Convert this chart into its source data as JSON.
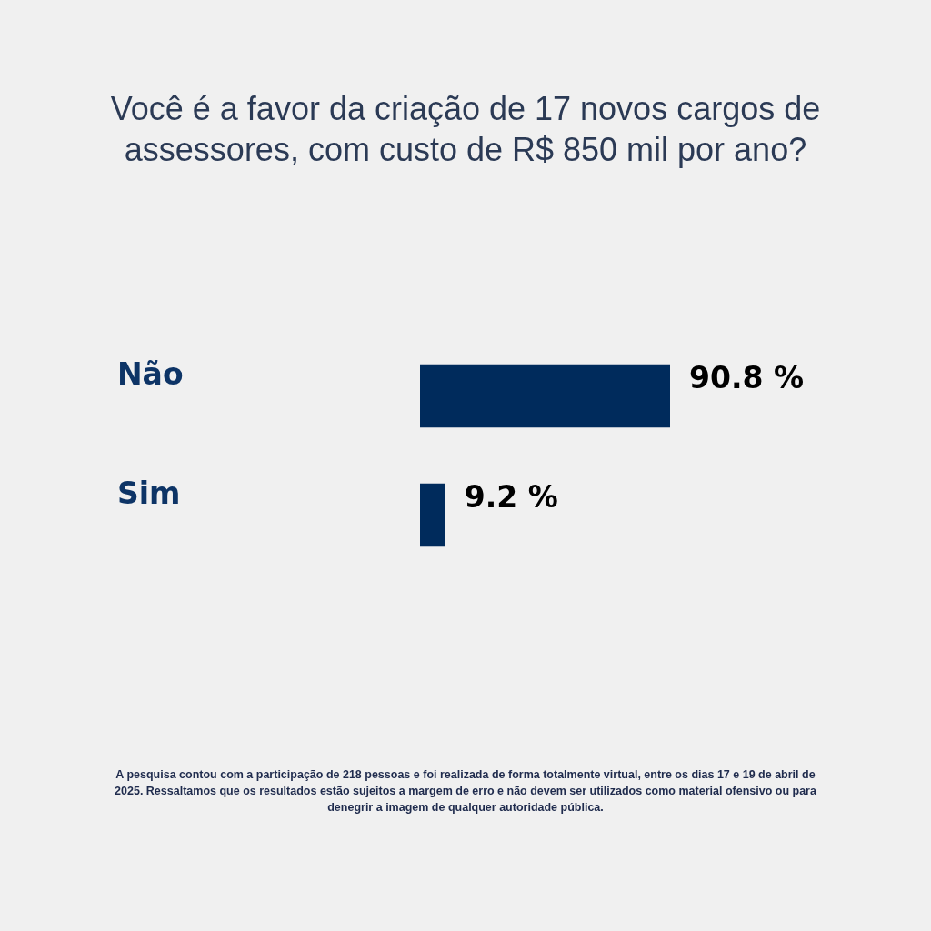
{
  "chart_data": {
    "type": "bar",
    "orientation": "horizontal",
    "title": "Você é a favor da criação de 17 novos cargos de assessores, com custo de R$ 850 mil por ano?",
    "categories": [
      "Não",
      "Sim"
    ],
    "values": [
      90.8,
      9.2
    ],
    "color": "#002b5c",
    "value_labels": [
      "90.8 %",
      "9.2 %"
    ],
    "tick_labels": "y",
    "annotations": [
      "A pesquisa contou com a participação de 218 pessoas e foi realizada de forma totalmente virtual, entre os dias 17 e 19 de abril de 2025. Ressaltamos que os resultados estão sujeitos a margem de erro e não devem ser utilizados como material ofensivo ou para denegrir a imagem de qualquer autoridade pública."
    ]
  }
}
